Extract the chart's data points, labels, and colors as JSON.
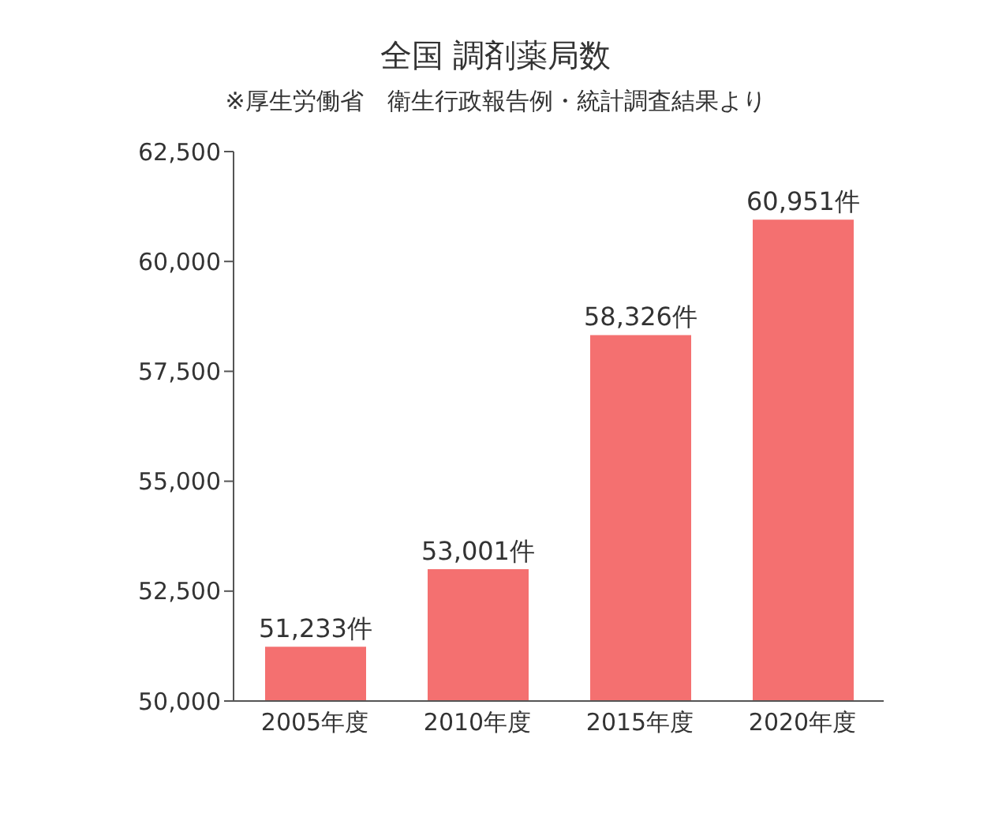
{
  "chart_data": {
    "type": "bar",
    "title": "全国 調剤薬局数",
    "subtitle": "※厚生労働省　衛生行政報告例・統計調査結果より",
    "categories": [
      "2005年度",
      "2010年度",
      "2015年度",
      "2020年度"
    ],
    "values": [
      51233,
      53001,
      58326,
      60951
    ],
    "value_labels": [
      "51,233件",
      "53,001件",
      "58,326件",
      "60,951件"
    ],
    "color": "#f47070",
    "ylim": [
      50000,
      62500
    ],
    "yticks": [
      {
        "value": 50000,
        "label": "50,000"
      },
      {
        "value": 52500,
        "label": "52,500"
      },
      {
        "value": 55000,
        "label": "55,000"
      },
      {
        "value": 57500,
        "label": "57,500"
      },
      {
        "value": 60000,
        "label": "60,000"
      },
      {
        "value": 62500,
        "label": "62,500"
      }
    ],
    "grid": false,
    "legend": false
  }
}
